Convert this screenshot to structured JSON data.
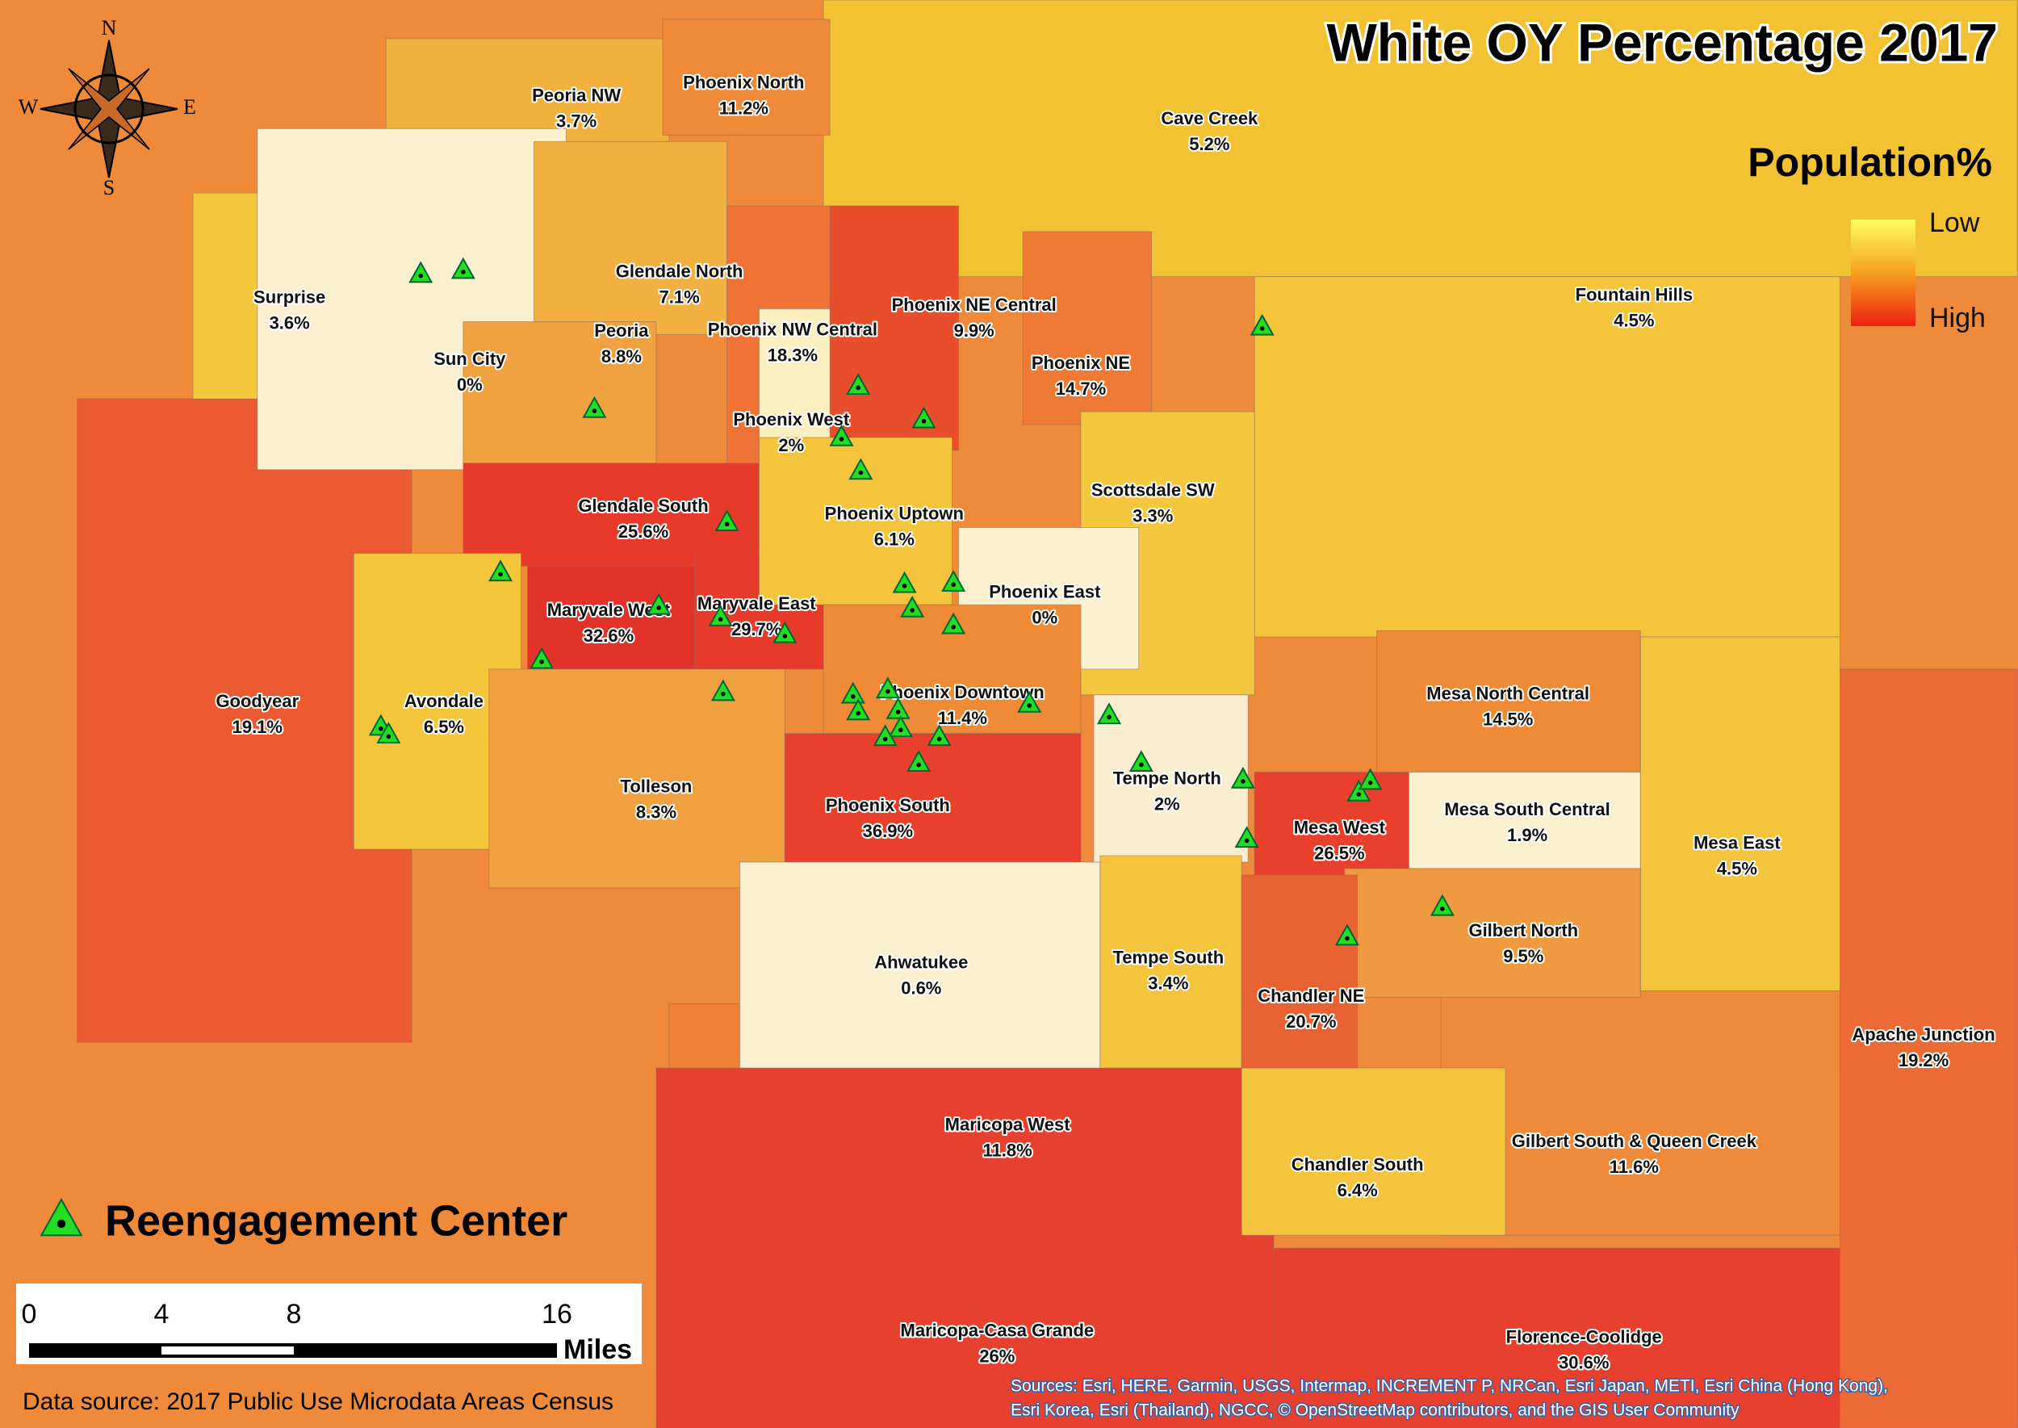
{
  "title": "White OY Percentage 2017",
  "legend": {
    "title": "Population%",
    "low": "Low",
    "high": "High",
    "marker": "Reengagement Center"
  },
  "compass": {
    "n": "N",
    "e": "E",
    "s": "S",
    "w": "W"
  },
  "scale_bar": {
    "ticks": [
      "0",
      "4",
      "8",
      "16"
    ],
    "unit": "Miles"
  },
  "source": "Data source: 2017 Public Use Microdata Areas Census",
  "attribution": [
    "Sources: Esri, HERE, Garmin, USGS, Intermap, INCREMENT P, NRCan, Esri Japan, METI, Esri China (Hong Kong),",
    "Esri Korea, Esri (Thailand), NGCC, © OpenStreetMap contributors, and the GIS User Community"
  ],
  "regions": [
    {
      "name": "Cave Creek",
      "value": "5.2%",
      "color": "#f3c232"
    },
    {
      "name": "Fountain Hills",
      "value": "4.5%",
      "color": "#f4c53a"
    },
    {
      "name": "Maricopa West",
      "value": "11.8%",
      "color": "#ef8034"
    },
    {
      "name": "Maricopa-Casa Grande",
      "value": "26%",
      "color": "#e8402e"
    },
    {
      "name": "Florence-Coolidge",
      "value": "30.6%",
      "color": "#e8402e"
    },
    {
      "name": "Apache Junction",
      "value": "19.2%",
      "color": "#ec6a36"
    },
    {
      "name": "Goodyear",
      "value": "19.1%",
      "color": "#eb5a30"
    },
    {
      "name": "Surprise",
      "value": "3.6%",
      "color": "#f3c83c"
    },
    {
      "name": "Peoria NW",
      "value": "3.7%",
      "color": "#f2b03c"
    },
    {
      "name": "Phoenix North",
      "value": "11.2%",
      "color": "#ef8a38"
    },
    {
      "name": "Sun City",
      "value": "0%",
      "color": "#faf0d0"
    },
    {
      "name": "Glendale North",
      "value": "7.1%",
      "color": "#f2b040"
    },
    {
      "name": "Peoria",
      "value": "8.8%",
      "color": "#f0a240"
    },
    {
      "name": "Phoenix NW Central",
      "value": "18.3%",
      "color": "#ee7334"
    },
    {
      "name": "Phoenix NE Central",
      "value": "9.9%",
      "color": "#e94e2c"
    },
    {
      "name": "Phoenix West",
      "value": "2%",
      "color": "#fbeebf"
    },
    {
      "name": "Phoenix NE",
      "value": "14.7%",
      "color": "#ee7a36"
    },
    {
      "name": "Glendale South",
      "value": "25.6%",
      "color": "#e83a2a"
    },
    {
      "name": "Maryvale West",
      "value": "32.6%",
      "color": "#e3322a"
    },
    {
      "name": "Maryvale East",
      "value": "29.7%",
      "color": "#e83a2a"
    },
    {
      "name": "Phoenix Uptown",
      "value": "6.1%",
      "color": "#f3c43c"
    },
    {
      "name": "Scottsdale SW",
      "value": "3.3%",
      "color": "#f4c83e"
    },
    {
      "name": "Phoenix East",
      "value": "0%",
      "color": "#fbf0d0"
    },
    {
      "name": "Avondale",
      "value": "6.5%",
      "color": "#f3c63c"
    },
    {
      "name": "Tolleson",
      "value": "8.3%",
      "color": "#f0a040"
    },
    {
      "name": "Phoenix Downtown",
      "value": "11.4%",
      "color": "#ef8a36"
    },
    {
      "name": "Phoenix South",
      "value": "36.9%",
      "color": "#e8402c"
    },
    {
      "name": "Ahwatukee",
      "value": "0.6%",
      "color": "#faefcf"
    },
    {
      "name": "Tempe North",
      "value": "2%",
      "color": "#fbeed0"
    },
    {
      "name": "Tempe South",
      "value": "3.4%",
      "color": "#f3c43c"
    },
    {
      "name": "Mesa West",
      "value": "26.5%",
      "color": "#e8402c"
    },
    {
      "name": "Mesa North Central",
      "value": "14.5%",
      "color": "#ef8a36"
    },
    {
      "name": "Mesa South Central",
      "value": "1.9%",
      "color": "#fbf0d0"
    },
    {
      "name": "Mesa East",
      "value": "4.5%",
      "color": "#f3c43c"
    },
    {
      "name": "Gilbert South & Queen Creek",
      "value": "11.6%",
      "color": "#ef8a3a"
    },
    {
      "name": "Gilbert North",
      "value": "9.5%",
      "color": "#ef9a40"
    },
    {
      "name": "Chandler NE",
      "value": "20.7%",
      "color": "#e86232"
    },
    {
      "name": "Chandler South",
      "value": "6.4%",
      "color": "#f3c43c"
    }
  ]
}
